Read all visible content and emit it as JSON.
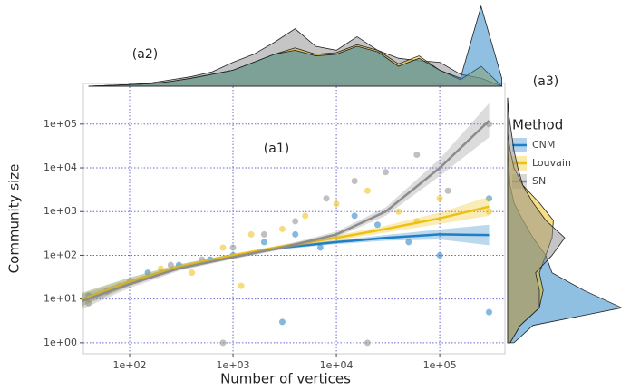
{
  "chart_data": [
    {
      "type": "scatter",
      "annotation": "(a1)",
      "x_label": "Number of vertices",
      "y_label": "Community size",
      "xlim": [
        35.7,
        427000
      ],
      "ylim": [
        0.56,
        850000
      ],
      "log_x": true,
      "log_y": true,
      "grid": true,
      "xticks": [
        {
          "value": 100,
          "label": "1e+02"
        },
        {
          "value": 1000,
          "label": "1e+03"
        },
        {
          "value": 10000,
          "label": "1e+04"
        },
        {
          "value": 100000,
          "label": "1e+05"
        }
      ],
      "yticks": [
        {
          "value": 1,
          "label": "1e+00"
        },
        {
          "value": 10,
          "label": "1e+01"
        },
        {
          "value": 100,
          "label": "1e+02"
        },
        {
          "value": 1000,
          "label": "1e+03"
        },
        {
          "value": 10000,
          "label": "1e+04"
        },
        {
          "value": 100000,
          "label": "1e+05"
        }
      ],
      "legend_title": "Method",
      "series": [
        {
          "name": "CNM",
          "color": "#1f7fc4",
          "x": [
            40,
            60,
            150,
            300,
            600,
            1000,
            2000,
            4000,
            7000,
            15000,
            25000,
            50000,
            100000,
            300000,
            300000,
            3000
          ],
          "values": [
            12,
            15,
            40,
            60,
            80,
            100,
            200,
            300,
            150,
            800,
            500,
            200,
            100,
            5,
            2000,
            3
          ],
          "trend": {
            "x": [
              35,
              100,
              300,
              1000,
              3000,
              10000,
              30000,
              100000,
              300000
            ],
            "values": [
              10,
              25,
              55,
              100,
              150,
              200,
              250,
              300,
              290
            ],
            "lower": [
              7,
              20,
              48,
              92,
              138,
              180,
              215,
              230,
              170
            ],
            "upper": [
              14,
              31,
              62,
              108,
              162,
              222,
              290,
              390,
              500
            ]
          }
        },
        {
          "name": "Louvain",
          "color": "#f0c010",
          "x": [
            40,
            80,
            200,
            400,
            800,
            1500,
            3000,
            5000,
            10000,
            20000,
            40000,
            60000,
            100000,
            300000,
            1200
          ],
          "values": [
            10,
            20,
            50,
            40,
            150,
            300,
            400,
            800,
            1500,
            3000,
            1000,
            600,
            2000,
            1000,
            20
          ],
          "trend": {
            "x": [
              35,
              100,
              300,
              1000,
              3000,
              10000,
              30000,
              100000,
              300000
            ],
            "values": [
              10,
              25,
              55,
              100,
              160,
              250,
              400,
              700,
              1300
            ],
            "lower": [
              7,
              20,
              48,
              92,
              145,
              220,
              330,
              520,
              800
            ],
            "upper": [
              14,
              31,
              62,
              108,
              176,
              285,
              480,
              950,
              2200
            ]
          }
        },
        {
          "name": "SN",
          "color": "#8c8c8c",
          "x": [
            40,
            100,
            250,
            500,
            1000,
            2000,
            4000,
            8000,
            15000,
            30000,
            60000,
            120000,
            300000,
            800,
            20000
          ],
          "values": [
            8,
            25,
            60,
            80,
            150,
            300,
            600,
            2000,
            5000,
            8000,
            20000,
            3000,
            100000,
            1,
            1
          ],
          "trend": {
            "x": [
              35,
              100,
              300,
              1000,
              3000,
              10000,
              30000,
              100000,
              300000
            ],
            "values": [
              9,
              22,
              50,
              90,
              150,
              300,
              1000,
              10000,
              120000
            ],
            "lower": [
              6,
              18,
              44,
              82,
              135,
              260,
              800,
              6500,
              50000
            ],
            "upper": [
              13,
              27,
              57,
              99,
              168,
              350,
              1250,
              16000,
              300000
            ]
          }
        }
      ]
    },
    {
      "type": "density",
      "annotation": "(a2)",
      "x": [
        40,
        63,
        100,
        158,
        251,
        398,
        631,
        1000,
        1585,
        2512,
        3981,
        6310,
        10000,
        15849,
        25119,
        39811,
        63096,
        100000,
        158489,
        251189,
        398107
      ],
      "series": [
        {
          "name": "SN",
          "color": "#8c8c8c",
          "values": [
            0,
            0.01,
            0.02,
            0.04,
            0.08,
            0.12,
            0.18,
            0.3,
            0.4,
            0.55,
            0.72,
            0.5,
            0.45,
            0.62,
            0.45,
            0.35,
            0.32,
            0.3,
            0.15,
            0.1,
            0
          ]
        },
        {
          "name": "Louvain",
          "color": "#f0c010",
          "values": [
            0,
            0.01,
            0.02,
            0.03,
            0.06,
            0.1,
            0.15,
            0.2,
            0.3,
            0.4,
            0.48,
            0.4,
            0.42,
            0.52,
            0.45,
            0.28,
            0.38,
            0.2,
            0.08,
            0.25,
            0
          ]
        },
        {
          "name": "CNM",
          "color": "#1f7fc4",
          "values": [
            0,
            0.01,
            0.02,
            0.03,
            0.06,
            0.1,
            0.15,
            0.2,
            0.3,
            0.4,
            0.45,
            0.38,
            0.4,
            0.5,
            0.43,
            0.25,
            0.35,
            0.2,
            0.1,
            1.0,
            0.1
          ]
        }
      ]
    },
    {
      "type": "density",
      "annotation": "(a3)",
      "x": [
        1,
        2.5,
        6.3,
        15.8,
        39.8,
        100,
        251,
        631,
        1585,
        3981,
        10000,
        25119,
        63096,
        158489,
        398107
      ],
      "series": [
        {
          "name": "CNM",
          "color": "#1f7fc4",
          "values": [
            0.05,
            0.2,
            0.9,
            0.6,
            0.35,
            0.3,
            0.2,
            0.12,
            0.05,
            0.02,
            0.01,
            0,
            0,
            0,
            0
          ]
        },
        {
          "name": "Louvain",
          "color": "#f0c010",
          "values": [
            0.02,
            0.1,
            0.25,
            0.28,
            0.25,
            0.3,
            0.35,
            0.36,
            0.25,
            0.12,
            0.05,
            0.02,
            0,
            0,
            0
          ]
        },
        {
          "name": "SN",
          "color": "#8c8c8c",
          "values": [
            0.02,
            0.1,
            0.25,
            0.25,
            0.22,
            0.35,
            0.45,
            0.3,
            0.2,
            0.12,
            0.08,
            0.05,
            0.03,
            0.01,
            0
          ]
        }
      ]
    }
  ]
}
